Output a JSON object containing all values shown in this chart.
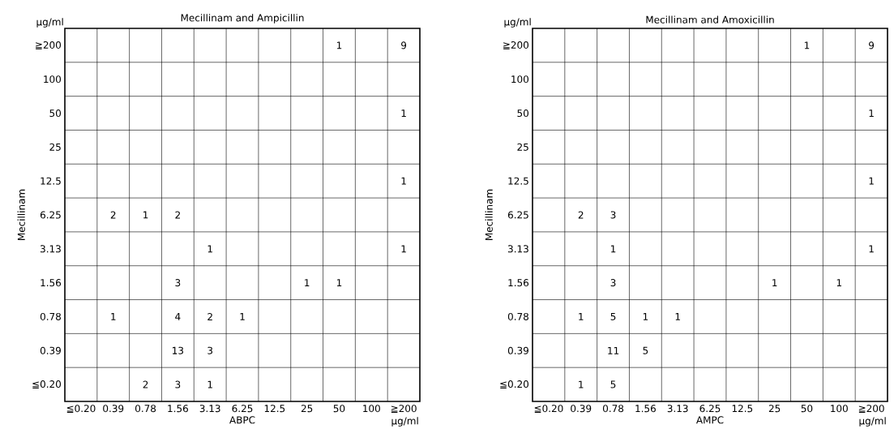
{
  "chart_data": [
    {
      "type": "heatmap",
      "title": "Mecillinam and Ampicillin",
      "xlabel": "ABPC",
      "ylabel": "Mecillinam",
      "categories": [
        "≦0.20",
        "0.39",
        "0.78",
        "1.56",
        "3.13",
        "6.25",
        "12.5",
        "25",
        "50",
        "100",
        "≧200"
      ],
      "y_categories": [
        "≧200",
        "100",
        "50",
        "25",
        "12.5",
        "6.25",
        "3.13",
        "1.56",
        "0.78",
        "0.39",
        "≦0.20"
      ],
      "cells": [
        [
          null,
          null,
          null,
          null,
          null,
          null,
          null,
          null,
          1,
          null,
          9
        ],
        [
          null,
          null,
          null,
          null,
          null,
          null,
          null,
          null,
          null,
          null,
          null
        ],
        [
          null,
          null,
          null,
          null,
          null,
          null,
          null,
          null,
          null,
          null,
          1
        ],
        [
          null,
          null,
          null,
          null,
          null,
          null,
          null,
          null,
          null,
          null,
          null
        ],
        [
          null,
          null,
          null,
          null,
          null,
          null,
          null,
          null,
          null,
          null,
          1
        ],
        [
          null,
          2,
          1,
          2,
          null,
          null,
          null,
          null,
          null,
          null,
          null
        ],
        [
          null,
          null,
          null,
          null,
          1,
          null,
          null,
          null,
          null,
          null,
          1
        ],
        [
          null,
          null,
          null,
          3,
          null,
          null,
          null,
          1,
          1,
          null,
          null
        ],
        [
          null,
          1,
          null,
          4,
          2,
          1,
          null,
          null,
          null,
          null,
          null
        ],
        [
          null,
          null,
          null,
          13,
          3,
          null,
          null,
          null,
          null,
          null,
          null
        ],
        [
          null,
          null,
          2,
          3,
          1,
          null,
          null,
          null,
          null,
          null,
          null
        ]
      ],
      "data_labels": true,
      "grid": true,
      "annotations": [
        "μg/ml",
        "μg/ml"
      ]
    },
    {
      "type": "heatmap",
      "title": "Mecillinam and Amoxicillin",
      "xlabel": "AMPC",
      "ylabel": "Mecillinam",
      "categories": [
        "≦0.20",
        "0.39",
        "0.78",
        "1.56",
        "3.13",
        "6.25",
        "12.5",
        "25",
        "50",
        "100",
        "≧200"
      ],
      "y_categories": [
        "≧200",
        "100",
        "50",
        "25",
        "12.5",
        "6.25",
        "3.13",
        "1.56",
        "0.78",
        "0.39",
        "≦0.20"
      ],
      "cells": [
        [
          null,
          null,
          null,
          null,
          null,
          null,
          null,
          null,
          1,
          null,
          9
        ],
        [
          null,
          null,
          null,
          null,
          null,
          null,
          null,
          null,
          null,
          null,
          null
        ],
        [
          null,
          null,
          null,
          null,
          null,
          null,
          null,
          null,
          null,
          null,
          1
        ],
        [
          null,
          null,
          null,
          null,
          null,
          null,
          null,
          null,
          null,
          null,
          null
        ],
        [
          null,
          null,
          null,
          null,
          null,
          null,
          null,
          null,
          null,
          null,
          1
        ],
        [
          null,
          2,
          3,
          null,
          null,
          null,
          null,
          null,
          null,
          null,
          null
        ],
        [
          null,
          null,
          1,
          null,
          null,
          null,
          null,
          null,
          null,
          null,
          1
        ],
        [
          null,
          null,
          3,
          null,
          null,
          null,
          null,
          1,
          null,
          1,
          null
        ],
        [
          null,
          1,
          5,
          1,
          1,
          null,
          null,
          null,
          null,
          null,
          null
        ],
        [
          null,
          null,
          11,
          5,
          null,
          null,
          null,
          null,
          null,
          null,
          null
        ],
        [
          null,
          1,
          5,
          null,
          null,
          null,
          null,
          null,
          null,
          null,
          null
        ]
      ],
      "data_labels": true,
      "grid": true,
      "annotations": [
        "μg/ml",
        "μg/ml"
      ]
    }
  ]
}
